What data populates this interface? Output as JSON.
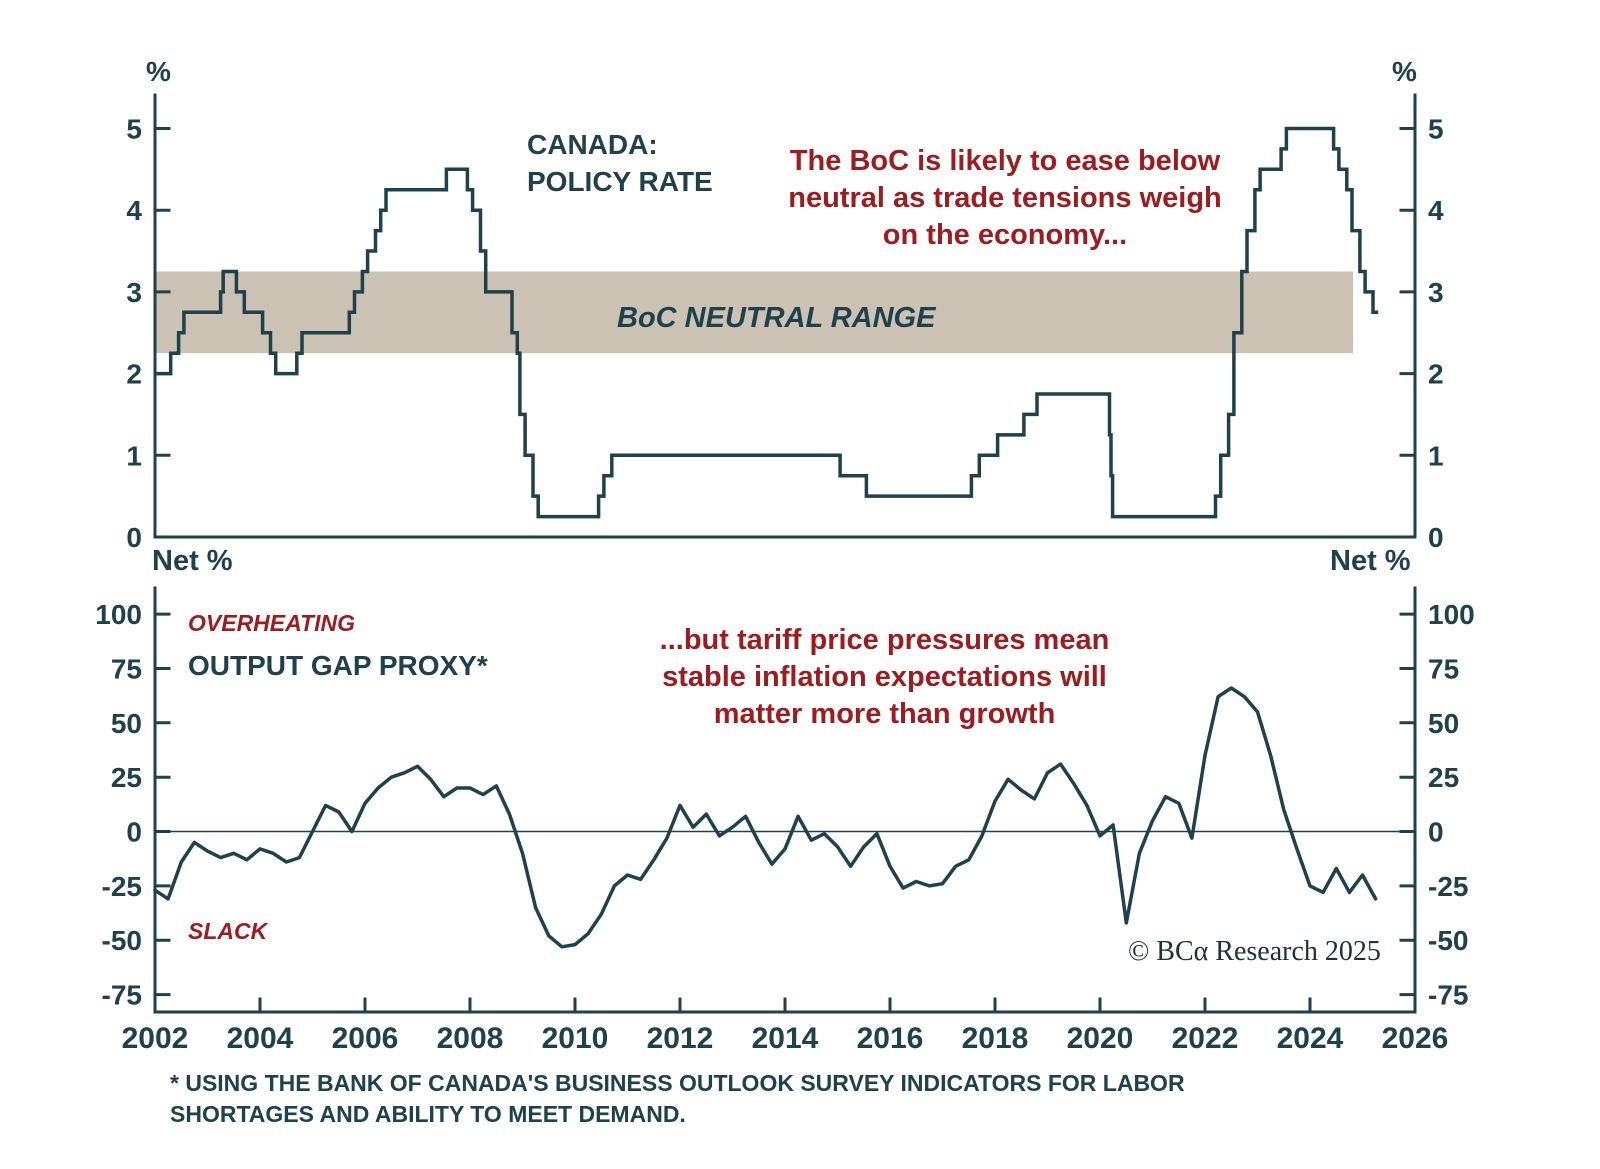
{
  "page": {
    "copyright": "© BCα Research 2025",
    "footnote": "* USING THE BANK OF CANADA'S BUSINESS OUTLOOK SURVEY INDICATORS FOR LABOR\nSHORTAGES AND ABILITY TO MEET DEMAND."
  },
  "colors": {
    "dark": "#1e414c",
    "red": "#9e1b1e",
    "band": "#cbc2b4",
    "background": "#ffffff"
  },
  "chart_data": [
    {
      "type": "line",
      "style": "step",
      "title": "CANADA:\nPOLICY RATE",
      "annotation": "The BoC is likely to ease below\nneutral as trade tensions weigh\non the economy...",
      "unit_label": "%",
      "band_label": "BoC NEUTRAL RANGE",
      "neutral_band": [
        2.25,
        3.25
      ],
      "band_year_span": [
        2002,
        2024.82
      ],
      "xlim": [
        2002,
        2026
      ],
      "xticks": [
        2002,
        2004,
        2006,
        2008,
        2010,
        2012,
        2014,
        2016,
        2018,
        2020,
        2022,
        2024,
        2026
      ],
      "ylim": [
        0,
        5.41
      ],
      "yticks": [
        0,
        1,
        2,
        3,
        4,
        5
      ],
      "grid": false,
      "series": [
        {
          "name": "policy_rate",
          "x": [
            2002.0,
            2002.3,
            2002.45,
            2002.55,
            2003.25,
            2003.3,
            2003.55,
            2003.7,
            2004.05,
            2004.2,
            2004.3,
            2004.7,
            2004.8,
            2005.7,
            2005.8,
            2005.95,
            2006.05,
            2006.2,
            2006.3,
            2006.4,
            2007.55,
            2007.95,
            2008.05,
            2008.2,
            2008.3,
            2008.8,
            2008.9,
            2008.95,
            2009.05,
            2009.2,
            2009.3,
            2010.45,
            2010.55,
            2010.7,
            2015.05,
            2015.55,
            2017.55,
            2017.7,
            2018.05,
            2018.55,
            2018.8,
            2020.18,
            2020.21,
            2020.24,
            2022.2,
            2022.3,
            2022.45,
            2022.55,
            2022.7,
            2022.8,
            2022.95,
            2023.05,
            2023.45,
            2023.55,
            2024.45,
            2024.55,
            2024.7,
            2024.8,
            2024.95,
            2025.05,
            2025.2
          ],
          "y": [
            2.0,
            2.25,
            2.5,
            2.75,
            3.0,
            3.25,
            3.0,
            2.75,
            2.5,
            2.25,
            2.0,
            2.25,
            2.5,
            2.75,
            3.0,
            3.25,
            3.5,
            3.75,
            4.0,
            4.25,
            4.5,
            4.25,
            4.0,
            3.5,
            3.0,
            2.5,
            2.25,
            1.5,
            1.0,
            0.5,
            0.25,
            0.5,
            0.75,
            1.0,
            0.75,
            0.5,
            0.75,
            1.0,
            1.25,
            1.5,
            1.75,
            1.25,
            0.75,
            0.25,
            0.5,
            1.0,
            1.5,
            2.5,
            3.25,
            3.75,
            4.25,
            4.5,
            4.75,
            5.0,
            4.75,
            4.5,
            4.25,
            3.75,
            3.25,
            3.0,
            2.75
          ]
        }
      ]
    },
    {
      "type": "line",
      "style": "linear",
      "title": "OUTPUT GAP PROXY*",
      "label_overheating": "OVERHEATING",
      "label_slack": "SLACK",
      "annotation": "...but tariff price pressures mean\nstable inflation expectations will\nmatter more than growth",
      "unit_label": "Net %",
      "xlim": [
        2002,
        2026
      ],
      "xticks": [
        2002,
        2004,
        2006,
        2008,
        2010,
        2012,
        2014,
        2016,
        2018,
        2020,
        2022,
        2024,
        2026
      ],
      "ylim": [
        -83,
        112
      ],
      "yticks": [
        100,
        75,
        50,
        25,
        0,
        -25,
        -50,
        -75
      ],
      "zero_line": true,
      "grid": false,
      "series": [
        {
          "name": "output_gap_proxy",
          "x": [
            2002.0,
            2002.25,
            2002.5,
            2002.75,
            2003.0,
            2003.25,
            2003.5,
            2003.75,
            2004.0,
            2004.25,
            2004.5,
            2004.75,
            2005.0,
            2005.25,
            2005.5,
            2005.75,
            2006.0,
            2006.25,
            2006.5,
            2006.75,
            2007.0,
            2007.25,
            2007.5,
            2007.75,
            2008.0,
            2008.25,
            2008.5,
            2008.75,
            2009.0,
            2009.25,
            2009.5,
            2009.75,
            2010.0,
            2010.25,
            2010.5,
            2010.75,
            2011.0,
            2011.25,
            2011.5,
            2011.75,
            2012.0,
            2012.25,
            2012.5,
            2012.75,
            2013.0,
            2013.25,
            2013.5,
            2013.75,
            2014.0,
            2014.25,
            2014.5,
            2014.75,
            2015.0,
            2015.25,
            2015.5,
            2015.75,
            2016.0,
            2016.25,
            2016.5,
            2016.75,
            2017.0,
            2017.25,
            2017.5,
            2017.75,
            2018.0,
            2018.25,
            2018.5,
            2018.75,
            2019.0,
            2019.25,
            2019.5,
            2019.75,
            2020.0,
            2020.25,
            2020.5,
            2020.75,
            2021.0,
            2021.25,
            2021.5,
            2021.75,
            2022.0,
            2022.25,
            2022.5,
            2022.75,
            2023.0,
            2023.25,
            2023.5,
            2023.75,
            2024.0,
            2024.25,
            2024.5,
            2024.75,
            2025.0,
            2025.25
          ],
          "y": [
            -27,
            -31,
            -14,
            -5,
            -9,
            -12,
            -10,
            -13,
            -8,
            -10,
            -14,
            -12,
            0,
            12,
            9,
            0,
            13,
            20,
            25,
            27,
            30,
            24,
            16,
            20,
            20,
            17,
            21,
            8,
            -10,
            -35,
            -48,
            -53,
            -52,
            -47,
            -38,
            -25,
            -20,
            -22,
            -13,
            -3,
            12,
            2,
            8,
            -2,
            2,
            7,
            -5,
            -15,
            -8,
            7,
            -4,
            -1,
            -7,
            -16,
            -7,
            -1,
            -16,
            -26,
            -23,
            -25,
            -24,
            -16,
            -13,
            -2,
            14,
            24,
            19,
            15,
            27,
            31,
            22,
            12,
            -2,
            3,
            -42,
            -10,
            5,
            16,
            13,
            -3,
            35,
            62,
            66,
            62,
            55,
            35,
            10,
            -8,
            -25,
            -28,
            -17,
            -28,
            -20,
            -31
          ]
        }
      ]
    }
  ]
}
